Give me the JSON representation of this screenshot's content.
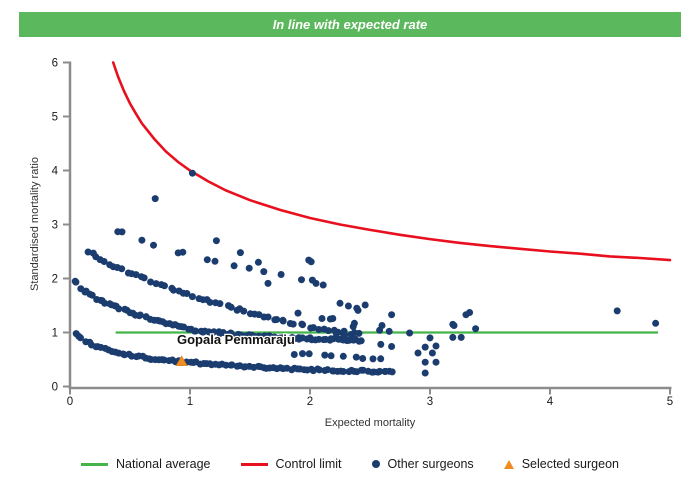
{
  "banner": {
    "text": "In line with expected rate",
    "bg_color": "#5cb85c",
    "text_color": "#ffffff"
  },
  "chart_data": {
    "type": "scatter",
    "xlabel": "Expected mortality",
    "ylabel": "Standardised mortality ratio",
    "xlim": [
      0,
      5
    ],
    "ylim": [
      0,
      6
    ],
    "x_ticks": [
      0,
      1,
      2,
      3,
      4,
      5
    ],
    "y_ticks": [
      0,
      1,
      2,
      3,
      4,
      5,
      6
    ],
    "grid": false,
    "axis_color": "#8c8c8c",
    "tick_label_color": "#1a1a1a",
    "national_average": {
      "label": "National average",
      "value": 1,
      "x_start": 0.38,
      "x_end": 4.9,
      "color": "#45b549"
    },
    "control_limit": {
      "label": "Control limit",
      "color": "#e8101e",
      "points": [
        [
          0.36,
          6.0
        ],
        [
          0.4,
          5.74
        ],
        [
          0.45,
          5.47
        ],
        [
          0.5,
          5.24
        ],
        [
          0.55,
          5.05
        ],
        [
          0.6,
          4.87
        ],
        [
          0.7,
          4.59
        ],
        [
          0.8,
          4.35
        ],
        [
          0.9,
          4.16
        ],
        [
          1.0,
          4.0
        ],
        [
          1.15,
          3.8
        ],
        [
          1.3,
          3.63
        ],
        [
          1.5,
          3.45
        ],
        [
          1.75,
          3.27
        ],
        [
          2.0,
          3.12
        ],
        [
          2.25,
          3.0
        ],
        [
          2.5,
          2.9
        ],
        [
          2.75,
          2.81
        ],
        [
          3.0,
          2.73
        ],
        [
          3.25,
          2.66
        ],
        [
          3.5,
          2.6
        ],
        [
          3.75,
          2.55
        ],
        [
          4.0,
          2.5
        ],
        [
          4.25,
          2.46
        ],
        [
          4.5,
          2.41
        ],
        [
          4.75,
          2.38
        ],
        [
          5.0,
          2.34
        ]
      ]
    },
    "other_surgeons": {
      "label": "Other surgeons",
      "color": "#1b3c6e",
      "point_radius": 3.5,
      "bands": [
        {
          "name": "band-smr1",
          "count": 95,
          "jx": 0.02,
          "jy": 0.04,
          "curve": [
            [
              0.03,
              1.0
            ],
            [
              0.1,
              0.87
            ],
            [
              0.2,
              0.76
            ],
            [
              0.35,
              0.66
            ],
            [
              0.5,
              0.58
            ],
            [
              0.7,
              0.51
            ],
            [
              0.93,
              0.46
            ],
            [
              1.2,
              0.41
            ],
            [
              1.5,
              0.37
            ],
            [
              1.9,
              0.32
            ],
            [
              2.3,
              0.29
            ],
            [
              2.7,
              0.27
            ]
          ]
        },
        {
          "name": "band-smr2",
          "count": 95,
          "jx": 0.02,
          "jy": 0.04,
          "curve": [
            [
              0.03,
              2.0
            ],
            [
              0.1,
              1.8
            ],
            [
              0.2,
              1.65
            ],
            [
              0.35,
              1.5
            ],
            [
              0.55,
              1.33
            ],
            [
              0.8,
              1.17
            ],
            [
              1.05,
              1.04
            ],
            [
              1.3,
              0.98
            ],
            [
              1.6,
              0.93
            ],
            [
              1.9,
              0.89
            ],
            [
              2.2,
              0.87
            ],
            [
              2.45,
              0.85
            ]
          ]
        },
        {
          "name": "band-smr2-5",
          "count": 60,
          "jx": 0.03,
          "jy": 0.05,
          "curve": [
            [
              0.12,
              2.55
            ],
            [
              0.3,
              2.3
            ],
            [
              0.55,
              2.05
            ],
            [
              0.8,
              1.85
            ],
            [
              1.1,
              1.62
            ],
            [
              1.45,
              1.4
            ],
            [
              1.8,
              1.2
            ],
            [
              2.15,
              1.04
            ],
            [
              2.45,
              0.95
            ]
          ]
        },
        {
          "name": "band-upper-sparse",
          "count": 14,
          "jx": 0.05,
          "jy": 0.07,
          "curve": [
            [
              0.3,
              2.98
            ],
            [
              0.5,
              2.76
            ],
            [
              0.75,
              2.58
            ],
            [
              1.0,
              2.42
            ],
            [
              1.3,
              2.27
            ],
            [
              1.6,
              2.12
            ],
            [
              1.95,
              1.97
            ],
            [
              2.1,
              1.92
            ]
          ]
        },
        {
          "name": "band-low-sparse",
          "count": 10,
          "jx": 0.04,
          "jy": 0.03,
          "curve": [
            [
              1.82,
              0.61
            ],
            [
              2.0,
              0.59
            ],
            [
              2.2,
              0.57
            ],
            [
              2.45,
              0.53
            ],
            [
              2.65,
              0.51
            ]
          ]
        }
      ],
      "points": [
        [
          0.71,
          3.48
        ],
        [
          1.02,
          3.95
        ],
        [
          1.22,
          2.7
        ],
        [
          1.42,
          2.48
        ],
        [
          1.57,
          2.3
        ],
        [
          1.65,
          1.91
        ],
        [
          1.99,
          2.34
        ],
        [
          2.01,
          2.31
        ],
        [
          2.02,
          1.97
        ],
        [
          2.11,
          1.88
        ],
        [
          2.25,
          1.54
        ],
        [
          2.32,
          1.49
        ],
        [
          2.39,
          1.45
        ],
        [
          2.46,
          1.51
        ],
        [
          1.9,
          1.36
        ],
        [
          2.1,
          1.26
        ],
        [
          2.17,
          1.25
        ],
        [
          2.19,
          1.26
        ],
        [
          2.36,
          1.11
        ],
        [
          2.37,
          1.17
        ],
        [
          2.4,
          1.41
        ],
        [
          2.58,
          1.04
        ],
        [
          2.6,
          1.13
        ],
        [
          2.66,
          1.02
        ],
        [
          2.68,
          1.33
        ],
        [
          2.83,
          0.99
        ],
        [
          2.22,
          0.98
        ],
        [
          2.29,
          0.95
        ],
        [
          2.59,
          0.78
        ],
        [
          2.68,
          0.74
        ],
        [
          2.9,
          0.62
        ],
        [
          2.96,
          0.73
        ],
        [
          3.05,
          0.75
        ],
        [
          2.96,
          0.45
        ],
        [
          3.05,
          0.45
        ],
        [
          2.63,
          0.28
        ],
        [
          2.96,
          0.25
        ],
        [
          3.0,
          0.9
        ],
        [
          3.02,
          0.62
        ],
        [
          3.19,
          1.15
        ],
        [
          3.2,
          1.13
        ],
        [
          3.19,
          0.91
        ],
        [
          3.26,
          0.91
        ],
        [
          3.3,
          1.33
        ],
        [
          3.33,
          1.37
        ],
        [
          3.38,
          1.07
        ],
        [
          4.56,
          1.4
        ],
        [
          4.88,
          1.17
        ]
      ]
    },
    "selected_surgeon": {
      "label": "Selected surgeon",
      "name": "Gopala Pemmaraju",
      "expected_mortality": 0.93,
      "smr": 0.47,
      "color": "#ef8d22"
    }
  },
  "legend": {
    "items": [
      {
        "label": "National average",
        "swatch": "line",
        "color": "#45b549"
      },
      {
        "label": "Control limit",
        "swatch": "line",
        "color": "#e8101e"
      },
      {
        "label": "Other surgeons",
        "swatch": "dot",
        "color": "#1b3c6e"
      },
      {
        "label": "Selected surgeon",
        "swatch": "triangle",
        "color": "#ef8d22"
      }
    ]
  }
}
